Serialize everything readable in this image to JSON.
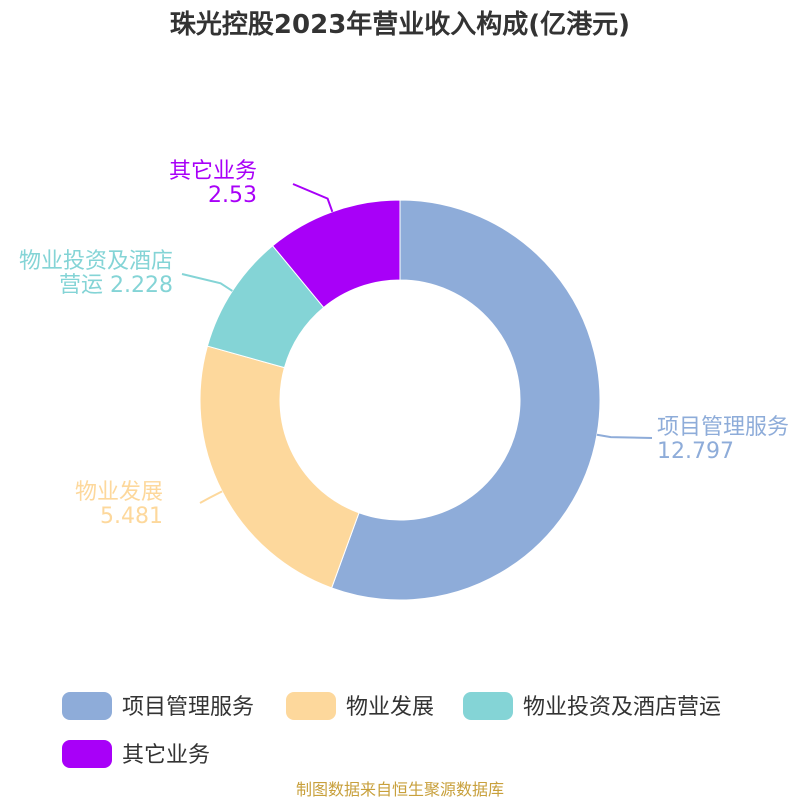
{
  "chart_data": {
    "type": "pie",
    "variant": "donut",
    "title": "珠光控股2023年营业收入构成(亿港元)",
    "slices": [
      {
        "label": "项目管理服务",
        "value": 12.797,
        "value_text": "12.797",
        "color": "#8eacd9",
        "label_lines": [
          "项目管理服务",
          "12.797"
        ]
      },
      {
        "label": "物业发展",
        "value": 5.481,
        "value_text": "5.481",
        "color": "#fdd89c",
        "label_lines": [
          "物业发展",
          "5.481"
        ]
      },
      {
        "label": "物业投资及酒店营运",
        "value": 2.228,
        "value_text": "2.228",
        "color": "#84d4d6",
        "label_lines": [
          "物业投资及酒店",
          "营运 2.228"
        ]
      },
      {
        "label": "其它业务",
        "value": 2.53,
        "value_text": "2.53",
        "color": "#a800f8",
        "label_lines": [
          "其它业务",
          "2.53"
        ]
      }
    ],
    "legend": [
      "项目管理服务",
      "物业发展",
      "物业投资及酒店营运",
      "其它业务"
    ],
    "legend_position": "bottom"
  },
  "source": "制图数据来自恒生聚源数据库"
}
